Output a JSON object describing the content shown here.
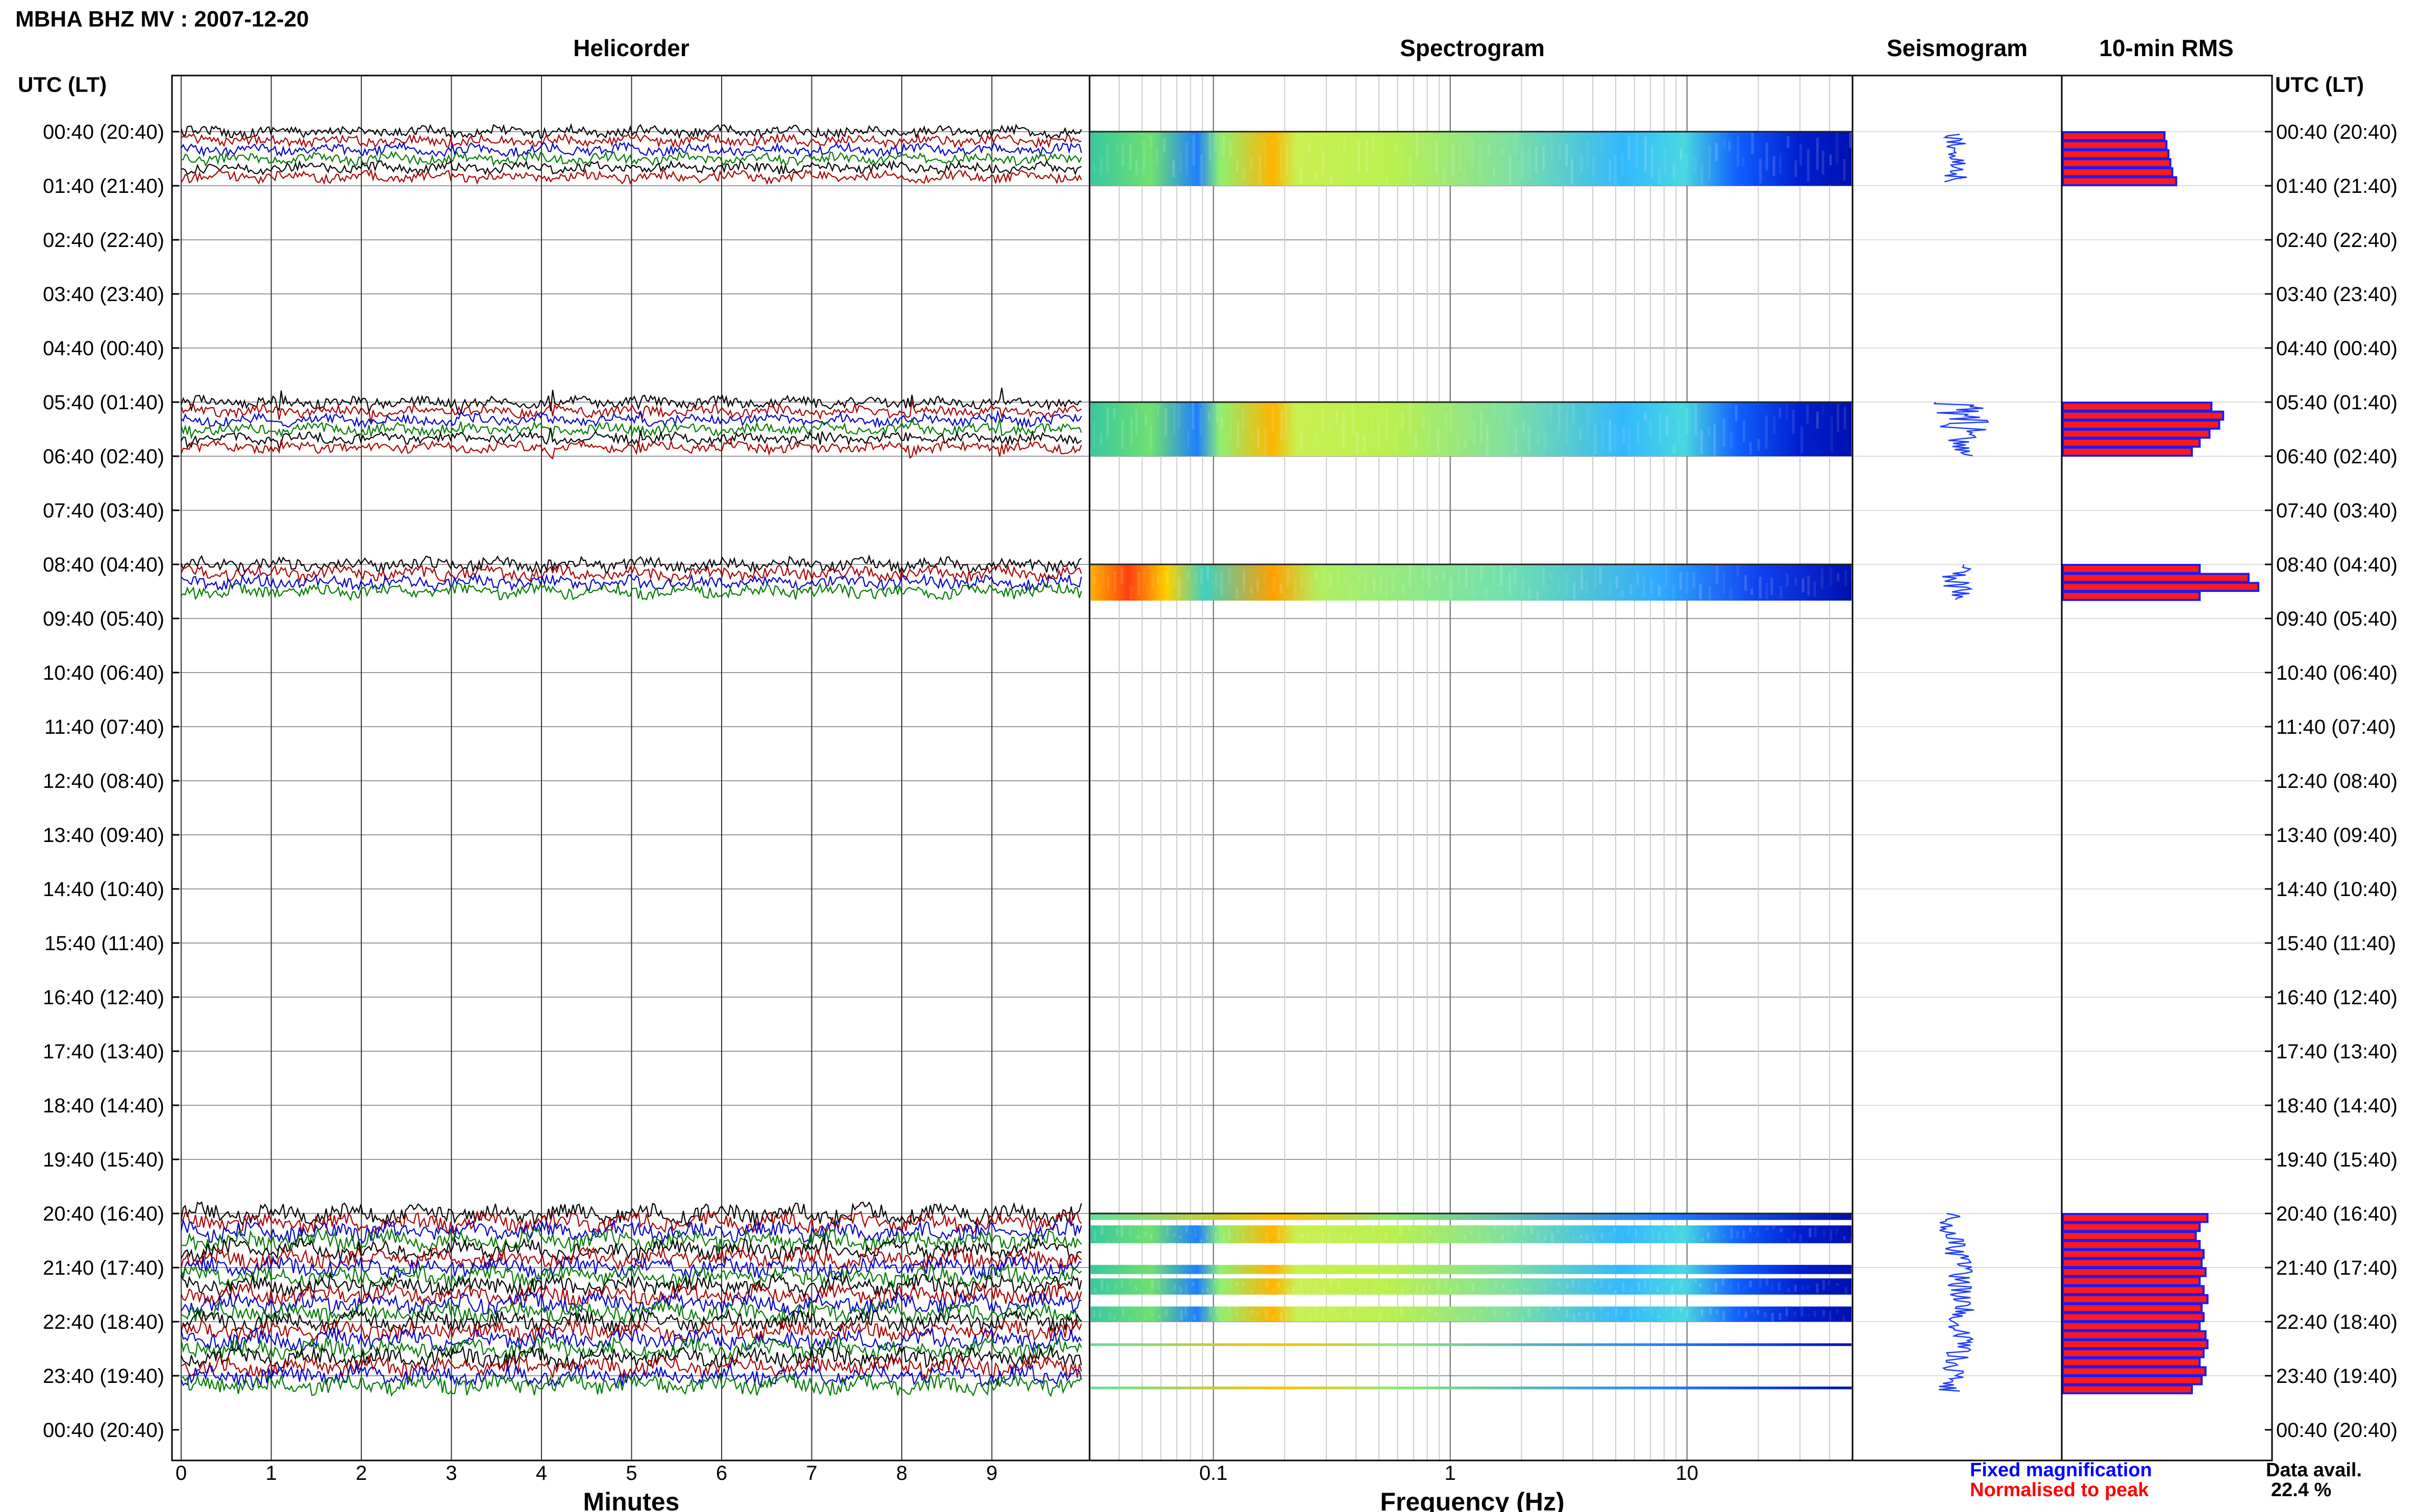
{
  "title": "MBHA BHZ MV : 2007-12-20",
  "panels": {
    "helicorder": "Helicorder",
    "spectrogram": "Spectrogram",
    "seismogram": "Seismogram",
    "rms": "10-min RMS"
  },
  "time_axis": {
    "header_left": "UTC (LT)",
    "header_right": "UTC (LT)",
    "labels": [
      "00:40 (20:40)",
      "01:40 (21:40)",
      "02:40 (22:40)",
      "03:40 (23:40)",
      "04:40 (00:40)",
      "05:40 (01:40)",
      "06:40 (02:40)",
      "07:40 (03:40)",
      "08:40 (04:40)",
      "09:40 (05:40)",
      "10:40 (06:40)",
      "11:40 (07:40)",
      "12:40 (08:40)",
      "13:40 (09:40)",
      "14:40 (10:40)",
      "15:40 (11:40)",
      "16:40 (12:40)",
      "17:40 (13:40)",
      "18:40 (14:40)",
      "19:40 (15:40)",
      "20:40 (16:40)",
      "21:40 (17:40)",
      "22:40 (18:40)",
      "23:40 (19:40)",
      "00:40 (20:40)"
    ]
  },
  "x_axes": {
    "minutes_label": "Minutes",
    "minutes_ticks": [
      "0",
      "1",
      "2",
      "3",
      "4",
      "5",
      "6",
      "7",
      "8",
      "9"
    ],
    "frequency_label": "Frequency (Hz)",
    "frequency_ticks": [
      "0.1",
      "1",
      "10"
    ]
  },
  "legend": {
    "fixed": "Fixed magnification",
    "normalised": "Normalised to peak",
    "avail_label": "Data avail.",
    "avail_value": "22.4 %"
  },
  "colors": {
    "trace_cycle": [
      "#000000",
      "#aa0000",
      "#0000c8",
      "#007a00"
    ],
    "fixed": "#0000ff",
    "normalised": "#ff0000",
    "rms_fill": "#ff1a1a",
    "rms_edge": "#1a1aff",
    "seismogram": "#1f3cff"
  },
  "chart_data": {
    "type": "heatmap",
    "station": "MBHA BHZ MV",
    "date": "2007-12-20",
    "hour_rows_utc": [
      "00:40",
      "01:40",
      "02:40",
      "03:40",
      "04:40",
      "05:40",
      "06:40",
      "07:40",
      "08:40",
      "09:40",
      "10:40",
      "11:40",
      "12:40",
      "13:40",
      "14:40",
      "15:40",
      "16:40",
      "17:40",
      "18:40",
      "19:40",
      "20:40",
      "21:40",
      "22:40",
      "23:40"
    ],
    "data_segments_hours": [
      {
        "start": 0.0,
        "end": 1.0
      },
      {
        "start": 5.0,
        "end": 6.0
      },
      {
        "start": 8.0,
        "end": 8.67
      },
      {
        "start": 20.0,
        "end": 23.33
      }
    ],
    "helicorder": {
      "x_unit": "minutes",
      "xlim": [
        0,
        10
      ],
      "periodic_spikes_segment": 2,
      "spike_minutes": [
        0.1,
        1.1,
        2.1,
        3.1,
        4.1,
        5.1,
        6.1,
        7.1,
        8.1,
        9.1
      ]
    },
    "spectrogram": {
      "x_unit": "Hz",
      "scale": "log",
      "xlim": [
        0.03,
        50
      ],
      "dominant_band_hz": 0.22
    },
    "rms_10min": [
      {
        "start": 0.0,
        "values": [
          0.52,
          0.53,
          0.54,
          0.55,
          0.56,
          0.58
        ]
      },
      {
        "start": 5.0,
        "values": [
          0.76,
          0.82,
          0.8,
          0.75,
          0.7,
          0.66
        ]
      },
      {
        "start": 8.0,
        "values": [
          0.7,
          0.95,
          1.0,
          0.7
        ]
      },
      {
        "start": 20.0,
        "values": [
          0.74,
          0.7,
          0.68,
          0.7,
          0.72,
          0.71,
          0.73,
          0.7,
          0.72,
          0.74,
          0.71,
          0.72,
          0.7,
          0.73,
          0.74,
          0.72,
          0.7,
          0.73,
          0.71,
          0.66
        ]
      }
    ],
    "data_availability_percent": 22.4
  }
}
